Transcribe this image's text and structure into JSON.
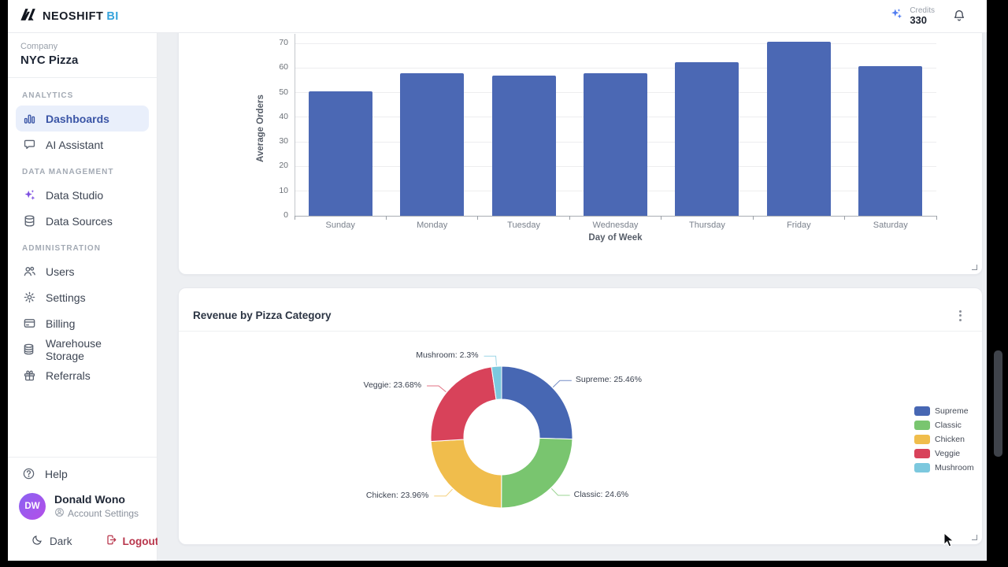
{
  "brand": {
    "name": "NEOSHIFT",
    "suffix": "BI"
  },
  "header": {
    "credits_label": "Credits",
    "credits_value": "330"
  },
  "sidebar": {
    "company_label": "Company",
    "company_name": "NYC Pizza",
    "sections": [
      {
        "label": "ANALYTICS",
        "items": [
          {
            "label": "Dashboards",
            "icon": "bar-chart",
            "active": true
          },
          {
            "label": "AI Assistant",
            "icon": "chat",
            "active": false
          }
        ]
      },
      {
        "label": "DATA MANAGEMENT",
        "items": [
          {
            "label": "Data Studio",
            "icon": "sparkles",
            "active": false,
            "icon_color": "purple"
          },
          {
            "label": "Data Sources",
            "icon": "database",
            "active": false
          }
        ]
      },
      {
        "label": "ADMINISTRATION",
        "items": [
          {
            "label": "Users",
            "icon": "users",
            "active": false
          },
          {
            "label": "Settings",
            "icon": "gear",
            "active": false
          },
          {
            "label": "Billing",
            "icon": "credit-card",
            "active": false
          },
          {
            "label": "Warehouse Storage",
            "icon": "storage",
            "active": false
          },
          {
            "label": "Referrals",
            "icon": "gift",
            "active": false
          }
        ]
      }
    ],
    "help_label": "Help",
    "user": {
      "initials": "DW",
      "name": "Donald Wono",
      "account_settings": "Account Settings"
    },
    "theme_toggle": "Dark",
    "logout": "Logout"
  },
  "chart_data": [
    {
      "type": "bar",
      "categories": [
        "Sunday",
        "Monday",
        "Tuesday",
        "Wednesday",
        "Thursday",
        "Friday",
        "Saturday"
      ],
      "values": [
        50.4,
        58,
        57,
        58,
        62.2,
        70.7,
        60.7
      ],
      "xlabel": "Day of Week",
      "ylabel": "Average Orders",
      "ylim": [
        0,
        70
      ],
      "yticks": [
        0,
        10,
        20,
        30,
        40,
        50,
        60,
        70
      ],
      "grid": true,
      "bar_color": "#4b68b4"
    },
    {
      "type": "pie",
      "donut": true,
      "title": "Revenue by Pizza Category",
      "legend_position": "right",
      "segments": [
        {
          "name": "Supreme",
          "pct": 25.46,
          "color": "#4767b3"
        },
        {
          "name": "Classic",
          "pct": 24.6,
          "color": "#79c56f"
        },
        {
          "name": "Chicken",
          "pct": 23.96,
          "color": "#f0bd4c"
        },
        {
          "name": "Veggie",
          "pct": 23.68,
          "color": "#d8425a"
        },
        {
          "name": "Mushroom",
          "pct": 2.3,
          "color": "#7cc8de"
        }
      ]
    }
  ]
}
